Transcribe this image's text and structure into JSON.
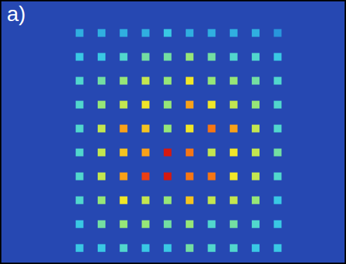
{
  "chart_data": {
    "type": "spot_array",
    "title": "a)",
    "x": [
      1,
      2,
      3,
      4,
      5,
      6,
      7,
      8,
      9,
      10
    ],
    "y": [
      10,
      9,
      8,
      7,
      6,
      5,
      4,
      3,
      2,
      1
    ],
    "z": [
      [
        0.35,
        0.35,
        0.35,
        0.35,
        0.4,
        0.35,
        0.35,
        0.35,
        0.35,
        0.3
      ],
      [
        0.4,
        0.4,
        0.45,
        0.5,
        0.5,
        0.55,
        0.5,
        0.45,
        0.45,
        0.4
      ],
      [
        0.45,
        0.5,
        0.55,
        0.6,
        0.55,
        0.65,
        0.55,
        0.55,
        0.5,
        0.45
      ],
      [
        0.45,
        0.55,
        0.6,
        0.65,
        0.55,
        0.75,
        0.65,
        0.6,
        0.55,
        0.45
      ],
      [
        0.45,
        0.6,
        0.75,
        0.7,
        0.55,
        0.65,
        0.8,
        0.75,
        0.6,
        0.45
      ],
      [
        0.45,
        0.6,
        0.7,
        0.75,
        0.9,
        0.8,
        0.6,
        0.65,
        0.6,
        0.5
      ],
      [
        0.45,
        0.6,
        0.75,
        0.85,
        0.9,
        0.8,
        0.8,
        0.65,
        0.6,
        0.45
      ],
      [
        0.45,
        0.55,
        0.65,
        0.6,
        0.55,
        0.7,
        0.6,
        0.6,
        0.55,
        0.4
      ],
      [
        0.4,
        0.5,
        0.55,
        0.55,
        0.5,
        0.55,
        0.45,
        0.5,
        0.45,
        0.4
      ],
      [
        0.4,
        0.4,
        0.45,
        0.4,
        0.4,
        0.5,
        0.45,
        0.45,
        0.4,
        0.4
      ]
    ],
    "zlim": [
      0,
      1
    ],
    "xlim": [
      -2.55,
      13.04
    ],
    "ylim": [
      0.39,
      11.32
    ],
    "marker": "square",
    "grid": false,
    "tick_labels": false
  }
}
